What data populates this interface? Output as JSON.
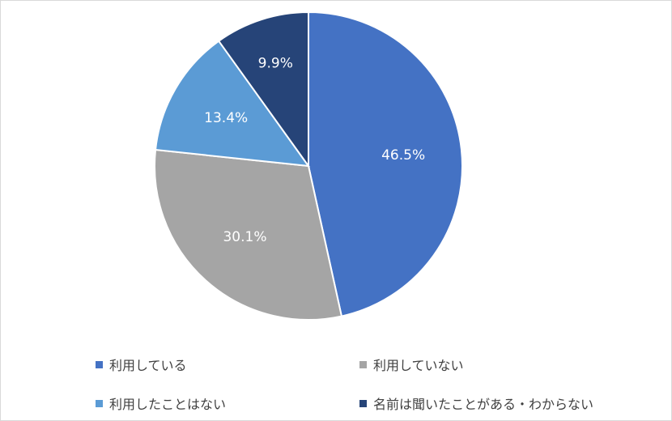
{
  "chart_data": {
    "type": "pie",
    "categories": [
      "利用している",
      "利用していない",
      "利用したことはない",
      "名前は聞いたことがある・わからない"
    ],
    "values": [
      46.5,
      30.1,
      13.4,
      9.9
    ],
    "labels": [
      "46.5%",
      "30.1%",
      "13.4%",
      "9.9%"
    ],
    "colors": [
      "#4472c4",
      "#a5a5a5",
      "#5b9bd5",
      "#264478"
    ],
    "title": "",
    "legend_position": "bottom",
    "start": "12 o'clock",
    "direction": "clockwise"
  }
}
